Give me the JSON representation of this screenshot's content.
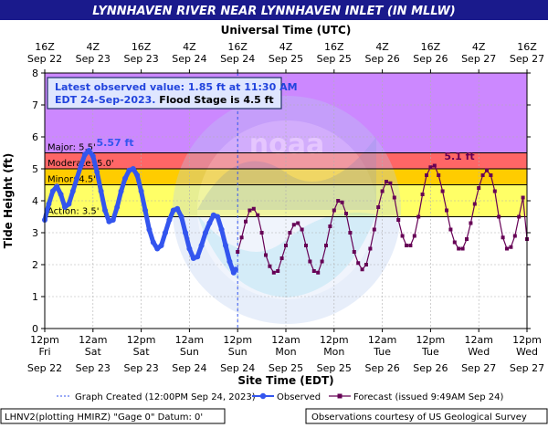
{
  "chart_data": {
    "type": "line",
    "title": "LYNNHAVEN RIVER NEAR LYNNHAVEN INLET (IN MLLW)",
    "top_axis_title": "Universal Time (UTC)",
    "xlabel": "Site Time (EDT)",
    "ylabel": "Tide Height (ft)",
    "ylim": [
      0,
      8
    ],
    "y_ticks": [
      "0",
      "1",
      "2",
      "3",
      "4",
      "5",
      "6",
      "7",
      "8"
    ],
    "x_range_hours": [
      0,
      120
    ],
    "top_ticks": [
      {
        "h": 0,
        "l1": "16Z",
        "l2": "Sep 22"
      },
      {
        "h": 12,
        "l1": "4Z",
        "l2": "Sep 23"
      },
      {
        "h": 24,
        "l1": "16Z",
        "l2": "Sep 23"
      },
      {
        "h": 36,
        "l1": "4Z",
        "l2": "Sep 24"
      },
      {
        "h": 48,
        "l1": "16Z",
        "l2": "Sep 24"
      },
      {
        "h": 60,
        "l1": "4Z",
        "l2": "Sep 25"
      },
      {
        "h": 72,
        "l1": "16Z",
        "l2": "Sep 25"
      },
      {
        "h": 84,
        "l1": "4Z",
        "l2": "Sep 26"
      },
      {
        "h": 96,
        "l1": "16Z",
        "l2": "Sep 26"
      },
      {
        "h": 108,
        "l1": "4Z",
        "l2": "Sep 27"
      },
      {
        "h": 120,
        "l1": "16Z",
        "l2": "Sep 27"
      }
    ],
    "bottom_ticks": [
      {
        "h": 0,
        "l1": "12pm",
        "l2": "Fri",
        "l3": "Sep 22"
      },
      {
        "h": 12,
        "l1": "12am",
        "l2": "Sat",
        "l3": "Sep 23"
      },
      {
        "h": 24,
        "l1": "12pm",
        "l2": "Sat",
        "l3": "Sep 23"
      },
      {
        "h": 36,
        "l1": "12am",
        "l2": "Sun",
        "l3": "Sep 24"
      },
      {
        "h": 48,
        "l1": "12pm",
        "l2": "Sun",
        "l3": "Sep 24"
      },
      {
        "h": 60,
        "l1": "12am",
        "l2": "Mon",
        "l3": "Sep 25"
      },
      {
        "h": 72,
        "l1": "12pm",
        "l2": "Mon",
        "l3": "Sep 25"
      },
      {
        "h": 84,
        "l1": "12am",
        "l2": "Tue",
        "l3": "Sep 26"
      },
      {
        "h": 96,
        "l1": "12pm",
        "l2": "Tue",
        "l3": "Sep 26"
      },
      {
        "h": 108,
        "l1": "12am",
        "l2": "Wed",
        "l3": "Sep 27"
      },
      {
        "h": 120,
        "l1": "12pm",
        "l2": "Wed",
        "l3": "Sep 27"
      }
    ],
    "flood_categories": [
      {
        "name": "Action",
        "label": "Action: 3.5'",
        "from": 3.5,
        "to": 4.5,
        "color": "#ffff66"
      },
      {
        "name": "Minor",
        "label": "Minor: 4.5'",
        "from": 4.5,
        "to": 5.0,
        "color": "#ffcc00"
      },
      {
        "name": "Moderate",
        "label": "Moderate: 5.0'",
        "from": 5.0,
        "to": 5.5,
        "color": "#ff6666"
      },
      {
        "name": "Major",
        "label": "Major: 5.5'",
        "from": 5.5,
        "to": 8.0,
        "color": "#cc88ff"
      }
    ],
    "graph_created_hour": 48.0,
    "latest_box": {
      "line1": "Latest observed value: 1.85 ft at 11:30 AM",
      "line2a": "EDT 24-Sep-2023.",
      "line2b": " Flood Stage is 4.5 ft"
    },
    "observed_peak_label": "5.57 ft",
    "forecast_peak_label": "5.1 ft",
    "series": [
      {
        "name": "Observed",
        "color": "#3355ee",
        "x": [
          0,
          1,
          2,
          3,
          4,
          5,
          6,
          7,
          8,
          9,
          10,
          11,
          12,
          13,
          14,
          15,
          16,
          17,
          18,
          19,
          20,
          21,
          22,
          23,
          24,
          25,
          26,
          27,
          28,
          29,
          30,
          31,
          32,
          33,
          34,
          35,
          36,
          37,
          38,
          39,
          40,
          41,
          42,
          43,
          44,
          45,
          46,
          47,
          47.5
        ],
        "y": [
          3.4,
          3.9,
          4.3,
          4.45,
          4.2,
          3.8,
          3.9,
          4.3,
          4.7,
          5.1,
          5.45,
          5.57,
          5.4,
          4.9,
          4.3,
          3.7,
          3.35,
          3.4,
          3.8,
          4.3,
          4.7,
          4.95,
          5.0,
          4.8,
          4.3,
          3.7,
          3.1,
          2.7,
          2.5,
          2.6,
          3.0,
          3.4,
          3.7,
          3.75,
          3.5,
          3.0,
          2.5,
          2.2,
          2.25,
          2.6,
          3.0,
          3.3,
          3.55,
          3.5,
          3.1,
          2.6,
          2.1,
          1.75,
          1.85
        ]
      },
      {
        "name": "Forecast",
        "color": "#660055",
        "x": [
          48,
          49,
          50,
          51,
          52,
          53,
          54,
          55,
          56,
          57,
          58,
          59,
          60,
          61,
          62,
          63,
          64,
          65,
          66,
          67,
          68,
          69,
          70,
          71,
          72,
          73,
          74,
          75,
          76,
          77,
          78,
          79,
          80,
          81,
          82,
          83,
          84,
          85,
          86,
          87,
          88,
          89,
          90,
          91,
          92,
          93,
          94,
          95,
          96,
          97,
          98,
          99,
          100,
          101,
          102,
          103,
          104,
          105,
          106,
          107,
          108,
          109,
          110,
          111,
          112,
          113,
          114,
          115,
          116,
          117,
          118,
          119,
          120
        ],
        "y": [
          2.4,
          2.85,
          3.35,
          3.7,
          3.75,
          3.55,
          3.0,
          2.3,
          1.95,
          1.75,
          1.8,
          2.2,
          2.6,
          3.0,
          3.25,
          3.3,
          3.1,
          2.6,
          2.1,
          1.8,
          1.75,
          2.1,
          2.6,
          3.2,
          3.7,
          4.0,
          3.95,
          3.6,
          3.0,
          2.4,
          2.05,
          1.85,
          2.0,
          2.5,
          3.1,
          3.8,
          4.3,
          4.6,
          4.55,
          4.1,
          3.4,
          2.9,
          2.6,
          2.6,
          2.9,
          3.5,
          4.2,
          4.8,
          5.05,
          5.1,
          4.8,
          4.3,
          3.7,
          3.1,
          2.7,
          2.5,
          2.5,
          2.8,
          3.3,
          3.9,
          4.4,
          4.8,
          4.95,
          4.8,
          4.3,
          3.5,
          2.85,
          2.5,
          2.55,
          2.9,
          3.5,
          4.1,
          2.8
        ]
      }
    ]
  },
  "legend": {
    "graph_created": "Graph Created (12:00PM Sep 24, 2023)",
    "observed": "Observed",
    "forecast": "Forecast (issued 9:49AM Sep 24)"
  },
  "footer": {
    "left": "LHNV2(plotting HMIRZ) \"Gage 0\" Datum: 0'",
    "right": "Observations courtesy of US Geological Survey"
  },
  "watermark": "NOAA — NATIONAL OCEANIC AND ATMOSPHERIC ADMINISTRATION — U.S. DEPARTMENT OF COMMERCE"
}
